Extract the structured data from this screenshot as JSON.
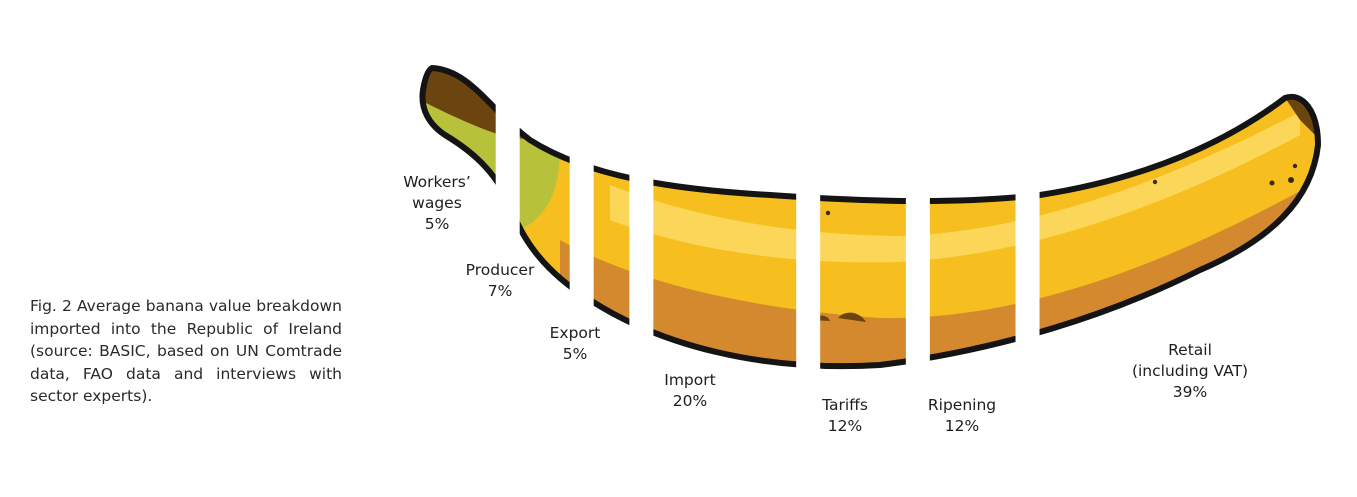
{
  "caption": "Fig. 2 Average banana value breakdown imported into the Republic of Ireland (source: BASIC, based on UN Comtrade data, FAO data and interviews with sector experts).",
  "colors": {
    "peel_yellow": "#f6bf1f",
    "peel_highlight": "#fbd658",
    "peel_shadow": "#d4892e",
    "stem_green": "#b7c23a",
    "tip_brown": "#6b4410",
    "outline": "#141414"
  },
  "chart_data": {
    "type": "bar",
    "title": "",
    "categories": [
      "Workers' wages",
      "Producer",
      "Export",
      "Import",
      "Tariffs",
      "Ripening",
      "Retail (including VAT)"
    ],
    "label_lines": [
      [
        "Workers’",
        "wages"
      ],
      [
        "Producer"
      ],
      [
        "Export"
      ],
      [
        "Import"
      ],
      [
        "Tariffs"
      ],
      [
        "Ripening"
      ],
      [
        "Retail",
        "(including VAT)"
      ]
    ],
    "values": [
      5,
      7,
      5,
      20,
      12,
      12,
      39
    ],
    "value_labels": [
      "5%",
      "7%",
      "5%",
      "20%",
      "12%",
      "12%",
      "39%"
    ],
    "unit": "%"
  }
}
